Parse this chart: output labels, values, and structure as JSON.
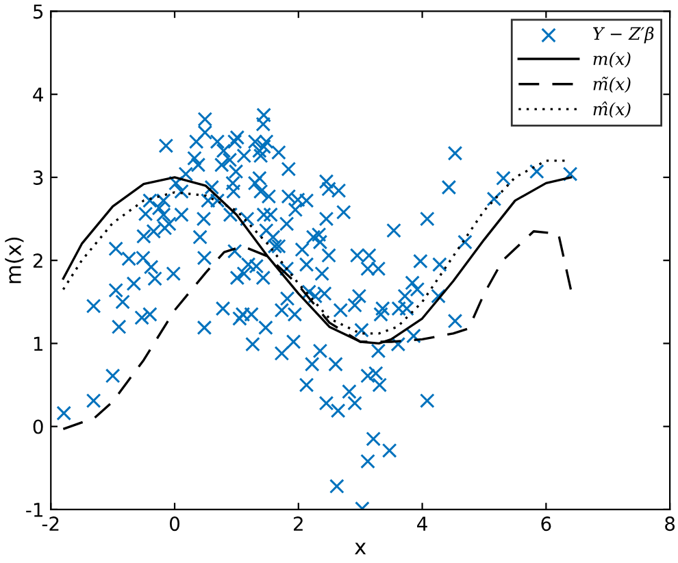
{
  "chart_data": {
    "type": "scatter",
    "xlabel": "x",
    "ylabel": "m(x)",
    "xlim": [
      -2,
      8
    ],
    "ylim": [
      -1,
      5
    ],
    "xticks": [
      -2,
      0,
      2,
      4,
      6,
      8
    ],
    "yticks": [
      -1,
      0,
      1,
      2,
      3,
      4,
      5
    ],
    "grid": false,
    "legend": "top right",
    "series": [
      {
        "name": "Y − Z′β",
        "marker": "cross",
        "color": "#0072bd",
        "x": [
          -1.79,
          -1.31,
          -1.31,
          -1.0,
          -0.95,
          -0.95,
          -0.84,
          -0.9,
          -0.74,
          -0.66,
          -0.51,
          -0.53,
          -0.4,
          -0.38,
          -0.32,
          -0.5,
          -0.47,
          -0.4,
          -0.25,
          -0.34,
          -0.14,
          -0.16,
          -0.18,
          -0.18,
          -0.02,
          -0.09,
          0.11,
          0.02,
          0.11,
          0.18,
          0.32,
          0.35,
          0.38,
          0.49,
          0.49,
          0.41,
          0.48,
          0.48,
          0.47,
          0.54,
          0.6,
          0.69,
          0.69,
          0.76,
          0.79,
          0.78,
          0.89,
          0.94,
          0.95,
          0.9,
          0.97,
          1.01,
          0.99,
          0.97,
          1.01,
          1.05,
          1.1,
          1.12,
          1.17,
          1.12,
          1.19,
          1.24,
          1.26,
          1.32,
          1.3,
          1.3,
          1.37,
          1.37,
          1.39,
          1.39,
          1.44,
          1.43,
          1.44,
          1.48,
          1.47,
          1.44,
          1.43,
          1.48,
          1.52,
          1.55,
          1.59,
          1.62,
          1.68,
          1.68,
          1.73,
          1.73,
          1.81,
          1.81,
          1.84,
          1.84,
          1.82,
          1.92,
          1.94,
          1.95,
          1.99,
          2.06,
          2.13,
          2.13,
          2.13,
          2.17,
          2.24,
          2.22,
          2.27,
          2.33,
          2.35,
          2.35,
          2.38,
          2.42,
          2.45,
          2.45,
          2.49,
          2.49,
          2.45,
          2.6,
          2.65,
          2.64,
          2.68,
          2.73,
          2.62,
          2.82,
          2.91,
          2.91,
          2.95,
          2.98,
          3.02,
          3.03,
          3.14,
          3.12,
          3.12,
          3.21,
          3.12,
          3.25,
          3.29,
          3.29,
          3.31,
          3.33,
          3.36,
          3.47,
          3.54,
          3.61,
          3.62,
          3.72,
          3.75,
          3.84,
          3.86,
          3.92,
          3.97,
          4.08,
          4.08,
          4.26,
          4.28,
          4.43,
          4.53,
          4.53,
          4.69,
          5.16,
          5.31,
          5.85,
          6.39
        ],
        "values": [
          0.16,
          0.31,
          1.45,
          0.61,
          2.14,
          1.64,
          1.5,
          1.2,
          2.02,
          1.72,
          2.03,
          1.31,
          1.35,
          1.92,
          1.78,
          2.29,
          2.56,
          2.72,
          2.63,
          2.35,
          3.38,
          2.39,
          2.55,
          2.72,
          1.84,
          2.44,
          2.55,
          2.93,
          2.83,
          3.04,
          3.23,
          3.43,
          3.15,
          3.7,
          3.54,
          2.28,
          2.03,
          1.19,
          2.5,
          2.72,
          2.88,
          3.43,
          2.72,
          3.15,
          3.32,
          1.42,
          3.21,
          2.93,
          2.83,
          2.55,
          3.43,
          3.48,
          3.07,
          2.11,
          1.79,
          1.3,
          1.35,
          3.26,
          2.5,
          1.84,
          1.95,
          1.35,
          0.99,
          1.93,
          3.43,
          2.93,
          3.32,
          2.99,
          3.26,
          2.83,
          3.75,
          3.64,
          3.37,
          3.43,
          1.19,
          2.55,
          1.79,
          2.36,
          2.77,
          2.55,
          2.28,
          2.17,
          2.17,
          3.3,
          0.88,
          1.4,
          1.9,
          2.44,
          3.1,
          2.77,
          1.54,
          1.02,
          1.35,
          2.61,
          2.73,
          2.13,
          2.72,
          1.95,
          0.5,
          1.62,
          2.28,
          0.75,
          1.57,
          2.31,
          0.91,
          2.22,
          1.84,
          1.6,
          2.5,
          2.95,
          2.86,
          2.06,
          0.28,
          0.75,
          2.84,
          0.19,
          1.4,
          2.58,
          -0.72,
          0.42,
          0.28,
          1.46,
          2.06,
          1.57,
          1.16,
          -0.99,
          2.06,
          1.9,
          0.61,
          -0.15,
          -0.42,
          0.64,
          1.9,
          0.91,
          0.5,
          1.35,
          1.42,
          -0.29,
          2.36,
          0.99,
          1.42,
          1.57,
          1.42,
          1.73,
          1.09,
          1.65,
          1.99,
          2.5,
          0.31,
          1.57,
          1.95,
          2.88,
          3.29,
          1.27,
          2.22,
          2.74,
          2.99,
          3.07,
          3.04
        ]
      },
      {
        "name": "m(x)",
        "type": "line",
        "line_style": "solid",
        "color": "#000000",
        "x": [
          -1.8,
          -1.5,
          -1,
          -0.5,
          0,
          0.5,
          1,
          1.5,
          2,
          2.5,
          3,
          3.3,
          3.5,
          4,
          4.5,
          5,
          5.5,
          6,
          6.4
        ],
        "values": [
          1.78,
          2.2,
          2.65,
          2.92,
          3.0,
          2.9,
          2.55,
          2.05,
          1.6,
          1.2,
          1.02,
          1.0,
          1.05,
          1.3,
          1.75,
          2.25,
          2.72,
          2.93,
          3.0
        ]
      },
      {
        "name": "m̃(x)",
        "type": "line",
        "line_style": "dashed",
        "color": "#000000",
        "x": [
          -1.8,
          -1.3,
          -1,
          -0.5,
          0,
          0.5,
          0.8,
          1.1,
          1.5,
          2,
          2.5,
          3,
          3.5,
          4,
          4.5,
          4.75,
          5,
          5.3,
          5.8,
          6.2,
          6.4
        ],
        "values": [
          -0.03,
          0.1,
          0.3,
          0.8,
          1.4,
          1.85,
          2.1,
          2.17,
          2.05,
          1.7,
          1.25,
          1.02,
          1.02,
          1.05,
          1.12,
          1.18,
          1.6,
          2.0,
          2.35,
          2.32,
          1.65
        ]
      },
      {
        "name": "m̂(x)",
        "type": "line",
        "line_style": "dotted",
        "color": "#000000",
        "x": [
          -1.8,
          -1.5,
          -1,
          -0.5,
          0,
          0.5,
          1,
          1.5,
          2,
          2.5,
          3,
          3.3,
          3.6,
          4,
          4.5,
          5,
          5.5,
          6,
          6.3
        ],
        "values": [
          1.65,
          2.0,
          2.45,
          2.72,
          2.82,
          2.78,
          2.6,
          2.2,
          1.72,
          1.3,
          1.12,
          1.12,
          1.2,
          1.5,
          2.05,
          2.6,
          3.0,
          3.2,
          3.2
        ]
      }
    ]
  }
}
